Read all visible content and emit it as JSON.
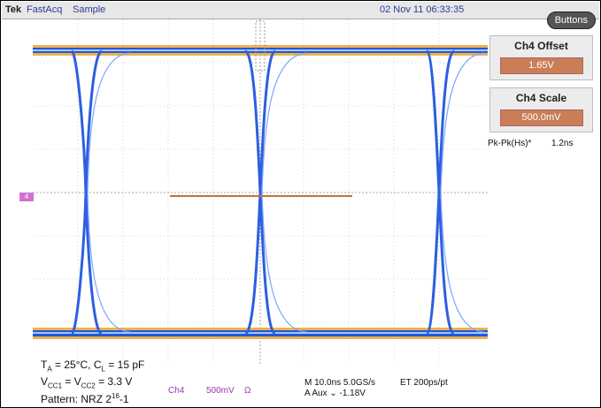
{
  "topbar": {
    "brand": "Tek",
    "acq": "FastAcq",
    "mode": "Sample",
    "datetime": "02 Nov 11 06:33:35"
  },
  "buttons_label": "Buttons",
  "panel": [
    {
      "title": "Ch4 Offset",
      "value": "1.65V"
    },
    {
      "title": "Ch4 Scale",
      "value": "500.0mV"
    }
  ],
  "measurement": {
    "label": "Pk-Pk(Hs)*",
    "value": "1.2ns"
  },
  "channel_marker": "4",
  "conditions": {
    "line1": "T",
    "line1_sub": "A",
    "line1_rest": " = 25°C, C",
    "line1_sub2": "L",
    "line1_end": " = 15 pF",
    "line2_a": "V",
    "line2_sub1": "CC1",
    "line2_b": " = V",
    "line2_sub2": "CC2",
    "line2_c": " = 3.3 V",
    "line3": "Pattern: NRZ 2",
    "line3_sup": "16",
    "line3_end": "-1"
  },
  "channel": {
    "name": "Ch4",
    "scale": "500mV",
    "coupling": "Ω"
  },
  "timebase": {
    "line1": "M 10.0ns 5.0GS/s",
    "et": "ET 200ps/pt",
    "line2": "A  Aux  ⌄  -1.18V"
  },
  "colors": {
    "trace": "#2d6de6",
    "rail_hot": "#e7a23a",
    "cursor": "#c3713a",
    "grid": "#9a9a9a"
  }
}
